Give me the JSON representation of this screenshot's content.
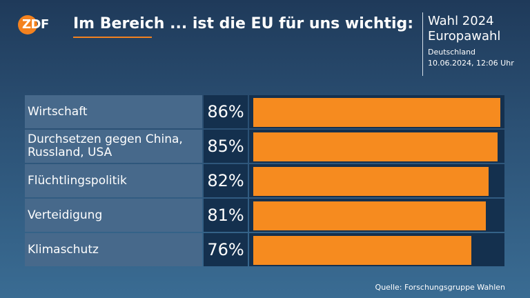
{
  "header": {
    "logo_text": "ZDF",
    "title": "Im Bereich ... ist die EU für uns wichtig:",
    "info_line1": "Wahl 2024",
    "info_line2": "Europawahl",
    "info_line3": "Deutschland",
    "info_line4": "10.06.2024, 12:06 Uhr"
  },
  "colors": {
    "accent": "#f68b1f",
    "label_bg": "#47698b",
    "value_bg": "#14304e"
  },
  "chart_data": {
    "type": "bar",
    "orientation": "horizontal",
    "title": "Im Bereich ... ist die EU für uns wichtig:",
    "categories": [
      "Wirtschaft",
      "Durchsetzen gegen China, Russland, USA",
      "Flüchtlingspolitik",
      "Verteidigung",
      "Klimaschutz"
    ],
    "values": [
      86,
      85,
      82,
      81,
      76
    ],
    "value_labels": [
      "86%",
      "85%",
      "82%",
      "81%",
      "76%"
    ],
    "unit": "%",
    "xlim": [
      0,
      100
    ],
    "grid": false
  },
  "footer": {
    "source": "Quelle: Forschungsgruppe Wahlen"
  }
}
